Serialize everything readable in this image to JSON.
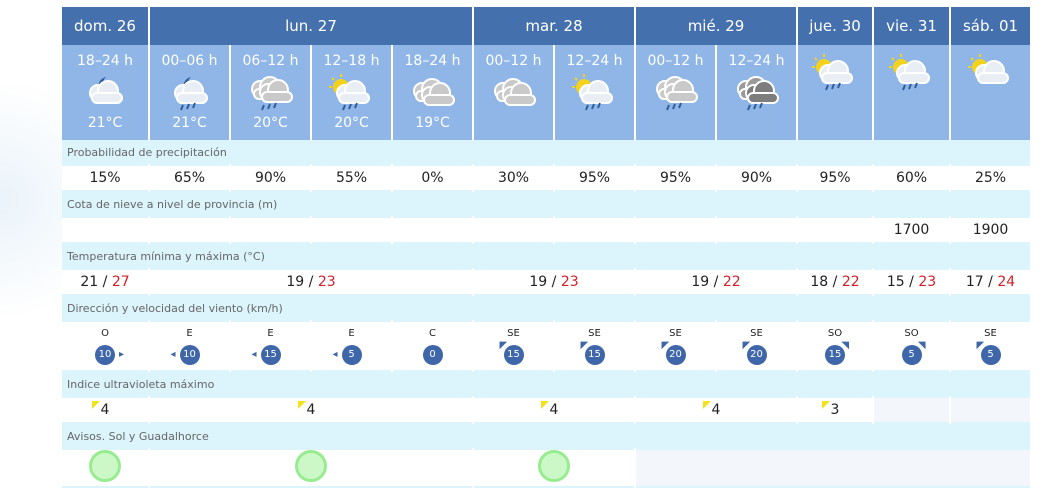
{
  "days": [
    {
      "label": "dom. 26",
      "span": 1
    },
    {
      "label": "lun. 27",
      "span": 4
    },
    {
      "label": "mar. 28",
      "span": 2
    },
    {
      "label": "mié. 29",
      "span": 2
    },
    {
      "label": "jue. 30",
      "span": 1
    },
    {
      "label": "vie. 31",
      "span": 1
    },
    {
      "label": "sáb. 01",
      "span": 1
    }
  ],
  "periods": [
    {
      "hours": "18–24 h",
      "icon": "moon-cloud-icon",
      "temp": "21°C"
    },
    {
      "hours": "00–06 h",
      "icon": "moon-cloud-rain-icon",
      "temp": "21°C"
    },
    {
      "hours": "06–12 h",
      "icon": "cloud-rain-icon",
      "temp": "20°C"
    },
    {
      "hours": "12–18 h",
      "icon": "sun-cloud-rain-icon",
      "temp": "20°C"
    },
    {
      "hours": "18–24 h",
      "icon": "cloudy-icon",
      "temp": "19°C"
    },
    {
      "hours": "00–12 h",
      "icon": "cloudy-icon",
      "temp": ""
    },
    {
      "hours": "12–24 h",
      "icon": "sun-cloud-rain-icon",
      "temp": ""
    },
    {
      "hours": "00–12 h",
      "icon": "cloud-rain-icon",
      "temp": ""
    },
    {
      "hours": "12–24 h",
      "icon": "dark-cloud-rain-icon",
      "temp": ""
    },
    {
      "hours": "",
      "icon": "sun-cloud-rain-icon",
      "temp": ""
    },
    {
      "hours": "",
      "icon": "sun-cloud-rain-icon",
      "temp": ""
    },
    {
      "hours": "",
      "icon": "sun-cloud-icon",
      "temp": ""
    }
  ],
  "labels": {
    "precip": "Probabilidad de precipitación",
    "snow": "Cota de nieve a nivel de provincia (m)",
    "temp": "Temperatura mínima y máxima (°C)",
    "wind": "Dirección y velocidad del viento (km/h)",
    "uv": "Indice ultravioleta máximo",
    "avisos": "Avisos. Sol y Guadalhorce"
  },
  "precip": [
    "15%",
    "65%",
    "90%",
    "55%",
    "0%",
    "30%",
    "95%",
    "95%",
    "90%",
    "95%",
    "60%",
    "25%"
  ],
  "snow": [
    "",
    "",
    "",
    "",
    "",
    "",
    "",
    "",
    "",
    "",
    "1700",
    "1900"
  ],
  "temps": [
    {
      "min": "21",
      "max": "27"
    },
    {
      "min": "19",
      "max": "23"
    },
    {
      "min": "19",
      "max": "23"
    },
    {
      "min": "19",
      "max": "22"
    },
    {
      "min": "18",
      "max": "22"
    },
    {
      "min": "15",
      "max": "23"
    },
    {
      "min": "17",
      "max": "24"
    }
  ],
  "wind": [
    {
      "dir": "O",
      "speed": "10"
    },
    {
      "dir": "E",
      "speed": "10"
    },
    {
      "dir": "E",
      "speed": "15"
    },
    {
      "dir": "E",
      "speed": "5"
    },
    {
      "dir": "C",
      "speed": "0"
    },
    {
      "dir": "SE",
      "speed": "15"
    },
    {
      "dir": "SE",
      "speed": "15"
    },
    {
      "dir": "SE",
      "speed": "20"
    },
    {
      "dir": "SE",
      "speed": "20"
    },
    {
      "dir": "SO",
      "speed": "15"
    },
    {
      "dir": "SO",
      "speed": "5"
    },
    {
      "dir": "SE",
      "speed": "5"
    }
  ],
  "uv": [
    "4",
    "4",
    "4",
    "4",
    "3",
    "",
    ""
  ],
  "avisos": [
    {
      "level": "green"
    },
    {
      "level": "green"
    },
    {
      "level": "green"
    },
    {
      "level": ""
    },
    {
      "level": ""
    },
    {
      "level": ""
    },
    {
      "level": ""
    }
  ],
  "colors": {
    "header": "#4570ae",
    "subheader": "#8fb6e6",
    "label_row": "#dcf4fb",
    "max_temp": "#d0202a",
    "wind_badge": "#3f66a8",
    "uv_marker": "#f1e21a",
    "aviso_green": "#98ec90"
  }
}
